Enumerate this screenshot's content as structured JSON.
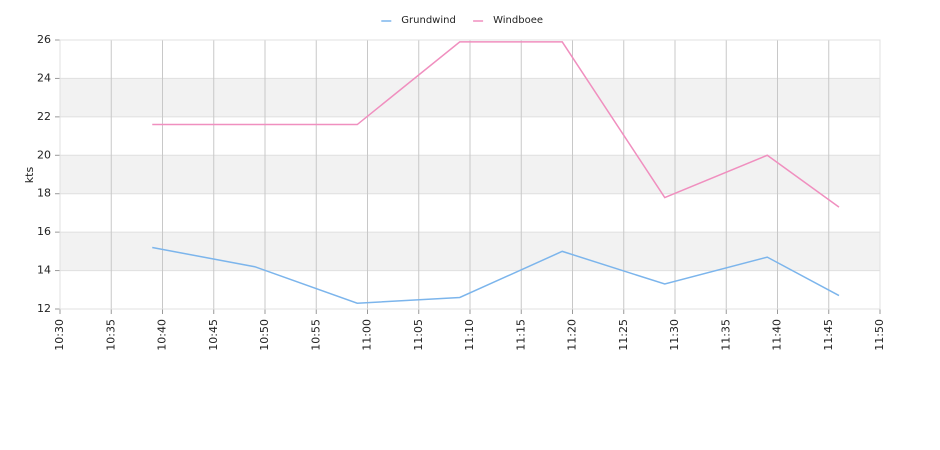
{
  "chart_data": {
    "type": "line",
    "y_label": "kts",
    "x": [
      "10:39",
      "10:49",
      "10:59",
      "11:09",
      "11:19",
      "11:29",
      "11:39",
      "11:46"
    ],
    "series": [
      {
        "name": "Grundwind",
        "color": "#7cb5ec",
        "values": [
          15.2,
          14.2,
          12.3,
          12.6,
          15.0,
          13.3,
          14.7,
          12.7
        ]
      },
      {
        "name": "Windboee",
        "color": "#f08fbf",
        "values": [
          21.6,
          21.6,
          21.6,
          25.9,
          25.9,
          17.8,
          20.0,
          17.3
        ]
      }
    ],
    "xlim": [
      "10:30",
      "11:50"
    ],
    "xticks": [
      "10:30",
      "10:35",
      "10:40",
      "10:45",
      "10:50",
      "10:55",
      "11:00",
      "11:05",
      "11:10",
      "11:15",
      "11:20",
      "11:25",
      "11:30",
      "11:35",
      "11:40",
      "11:45",
      "11:50"
    ],
    "ylim": [
      12,
      26
    ],
    "yticks": [
      12,
      14,
      16,
      18,
      20,
      22,
      24,
      26
    ],
    "grid": true,
    "alternate_bands": true,
    "legend": "top"
  }
}
